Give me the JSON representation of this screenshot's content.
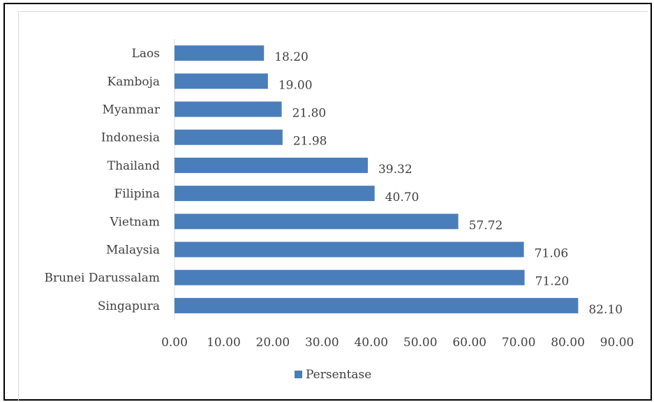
{
  "chart_data": {
    "type": "bar",
    "orientation": "horizontal",
    "categories": [
      "Laos",
      "Kamboja",
      "Myanmar",
      "Indonesia",
      "Thailand",
      "Filipina",
      "Vietnam",
      "Malaysia",
      "Brunei Darussalam",
      "Singapura"
    ],
    "series": [
      {
        "name": "Persentase",
        "values": [
          18.2,
          19.0,
          21.8,
          21.98,
          39.32,
          40.7,
          57.72,
          71.06,
          71.2,
          82.1
        ],
        "value_labels": [
          "18.20",
          "19.00",
          "21.80",
          "21.98",
          "39.32",
          "40.70",
          "57.72",
          "71.06",
          "71.20",
          "82.10"
        ],
        "color": "#4a7ebb"
      }
    ],
    "xlim": [
      0,
      90
    ],
    "x_ticks": [
      "0.00",
      "10.00",
      "20.00",
      "30.00",
      "40.00",
      "50.00",
      "60.00",
      "70.00",
      "80.00",
      "90.00"
    ],
    "grid": false,
    "legend": "bottom"
  }
}
